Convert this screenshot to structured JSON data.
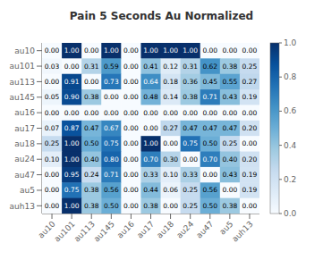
{
  "chart_data": {
    "type": "heatmap",
    "title": "Pain 5 Seconds Au Normalized",
    "categories": [
      "au10",
      "au101",
      "au113",
      "au145",
      "au16",
      "au17",
      "au18",
      "au24",
      "au47",
      "au5",
      "auh13"
    ],
    "rows": [
      "au10",
      "au101",
      "au113",
      "au145",
      "au16",
      "au17",
      "au18",
      "au24",
      "au47",
      "au5",
      "auh13"
    ],
    "values": [
      [
        0.0,
        1.0,
        0.0,
        1.0,
        0.0,
        1.0,
        1.0,
        1.0,
        0.0,
        0.0,
        0.0
      ],
      [
        0.03,
        0.0,
        0.31,
        0.59,
        0.0,
        0.41,
        0.12,
        0.31,
        0.62,
        0.38,
        0.25
      ],
      [
        0.0,
        0.91,
        0.0,
        0.73,
        0.0,
        0.64,
        0.18,
        0.36,
        0.45,
        0.55,
        0.27
      ],
      [
        0.05,
        0.9,
        0.38,
        0.0,
        0.0,
        0.48,
        0.14,
        0.38,
        0.71,
        0.43,
        0.19
      ],
      [
        0.0,
        0.0,
        0.0,
        0.0,
        0.0,
        0.0,
        0.0,
        0.0,
        0.0,
        0.0,
        0.0
      ],
      [
        0.07,
        0.87,
        0.47,
        0.67,
        0.0,
        0.0,
        0.27,
        0.47,
        0.47,
        0.47,
        0.2
      ],
      [
        0.25,
        1.0,
        0.5,
        0.75,
        0.0,
        1.0,
        0.0,
        0.75,
        0.5,
        0.25,
        0.0
      ],
      [
        0.1,
        1.0,
        0.4,
        0.8,
        0.0,
        0.7,
        0.3,
        0.0,
        0.7,
        0.4,
        0.2
      ],
      [
        0.0,
        0.95,
        0.24,
        0.71,
        0.0,
        0.33,
        0.1,
        0.33,
        0.0,
        0.43,
        0.19
      ],
      [
        0.0,
        0.75,
        0.38,
        0.56,
        0.0,
        0.44,
        0.06,
        0.25,
        0.56,
        0.0,
        0.19
      ],
      [
        0.0,
        1.0,
        0.38,
        0.5,
        0.0,
        0.38,
        0.0,
        0.25,
        0.5,
        0.38,
        0.0
      ]
    ],
    "value_labels": [
      [
        "0.00",
        "1.00",
        "0.00",
        "1.00",
        "0.00",
        "1.00",
        "1.00",
        "1.00",
        "0.00",
        "0.00",
        "0.00"
      ],
      [
        "0.03",
        "0.00",
        "0.31",
        "0.59",
        "0.00",
        "0.41",
        "0.12",
        "0.31",
        "0.62",
        "0.38",
        "0.25"
      ],
      [
        "0.00",
        "0.91",
        "0.00",
        "0.73",
        "0.00",
        "0.64",
        "0.18",
        "0.36",
        "0.45",
        "0.55",
        "0.27"
      ],
      [
        "0.05",
        "0.90",
        "0.38",
        "0.00",
        "0.00",
        "0.48",
        "0.14",
        "0.38",
        "0.71",
        "0.43",
        "0.19"
      ],
      [
        "0.00",
        "0.00",
        "0.00",
        "0.00",
        "0.00",
        "0.00",
        "0.00",
        "0.00",
        "0.00",
        "0.00",
        "0.00"
      ],
      [
        "0.07",
        "0.87",
        "0.47",
        "0.67",
        "0.00",
        "0.00",
        "0.27",
        "0.47",
        "0.47",
        "0.47",
        "0.20"
      ],
      [
        "0.25",
        "1.00",
        "0.50",
        "0.75",
        "0.00",
        "1.00",
        "0.00",
        "0.75",
        "0.50",
        "0.25",
        "0.00"
      ],
      [
        "0.10",
        "1.00",
        "0.40",
        "0.80",
        "0.00",
        "0.70",
        "0.30",
        "0.00",
        "0.70",
        "0.40",
        "0.20"
      ],
      [
        "0.00",
        "0.95",
        "0.24",
        "0.71",
        "0.00",
        "0.33",
        "0.10",
        "0.33",
        "0.00",
        "0.43",
        "0.19"
      ],
      [
        "0.00",
        "0.75",
        "0.38",
        "0.56",
        "0.00",
        "0.44",
        "0.06",
        "0.25",
        "0.56",
        "0.00",
        "0.19"
      ],
      [
        "0.00",
        "1.00",
        "0.38",
        "0.50",
        "0.00",
        "0.38",
        "0.00",
        "0.25",
        "0.50",
        "0.38",
        "0.00"
      ]
    ],
    "data_labels": true,
    "color": "Blues",
    "colorbar_range": [
      0,
      1
    ],
    "colorbar_ticks": [
      {
        "value": 0,
        "label": "0.0"
      },
      0.2,
      0.4,
      0.6,
      0.8,
      {
        "value": 1,
        "label": "1.0"
      }
    ]
  }
}
